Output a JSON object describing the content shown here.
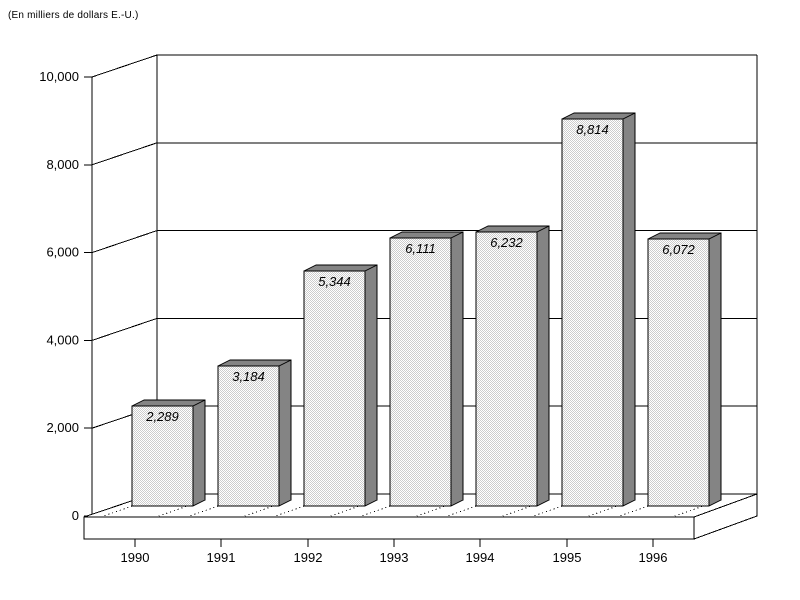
{
  "unit_note": "(En milliers de dollars E.-U.)",
  "chart_data": {
    "type": "bar",
    "projection": "3d",
    "title": "",
    "unit_note": "(En milliers de dollars E.-U.)",
    "categories": [
      "1990",
      "1991",
      "1992",
      "1993",
      "1994",
      "1995",
      "1996"
    ],
    "series": [
      {
        "name": "valeur",
        "values": [
          2289,
          3184,
          5344,
          6111,
          6232,
          8814,
          6072
        ],
        "value_labels": [
          "2,289",
          "3,184",
          "5,344",
          "6,111",
          "6,232",
          "8,814",
          "6,072"
        ]
      }
    ],
    "xlabel": "",
    "ylabel": "",
    "ylim": [
      0,
      10000
    ],
    "y_ticks": [
      {
        "value": 0,
        "label": "0"
      },
      {
        "value": 2000,
        "label": "2,000"
      },
      {
        "value": 4000,
        "label": "4,000"
      },
      {
        "value": 6000,
        "label": "6,000"
      },
      {
        "value": 8000,
        "label": "8,000"
      },
      {
        "value": 10000,
        "label": "10,000"
      }
    ],
    "grid": true,
    "legend": false,
    "colors": {
      "background": "#ffffff",
      "outline": "#000000",
      "bar_front_base": "#ffffff",
      "bar_front_checker": "#cccccc",
      "bar_side": "#848484",
      "wall_fill": "#ffffff",
      "floor_fill": "#ffffff",
      "text": "#000000"
    }
  }
}
